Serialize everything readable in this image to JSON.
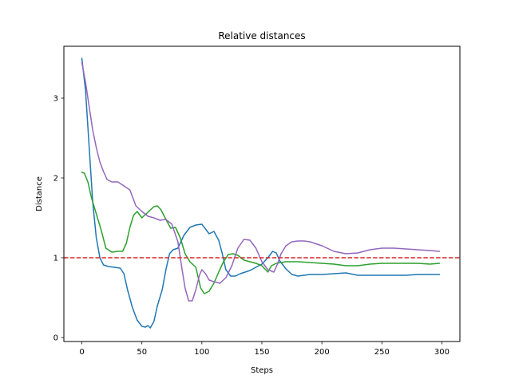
{
  "chart_data": {
    "type": "line",
    "title": "Relative distances",
    "xlabel": "Steps",
    "ylabel": "Distance",
    "xlim": [
      -15,
      315
    ],
    "ylim": [
      -0.05,
      3.65
    ],
    "xticks": [
      0,
      50,
      100,
      150,
      200,
      250,
      300
    ],
    "yticks": [
      0,
      1,
      2,
      3
    ],
    "grid": false,
    "reference_line": {
      "y": 1.0,
      "color": "#d62728",
      "style": "dashed"
    },
    "series": [
      {
        "color": "#1f77b4",
        "x": [
          0,
          3,
          6,
          9,
          12,
          15,
          18,
          22,
          27,
          32,
          35,
          38,
          42,
          46,
          50,
          53,
          55,
          57,
          60,
          63,
          67,
          70,
          73,
          76,
          80,
          85,
          90,
          95,
          100,
          103,
          106,
          110,
          114,
          117,
          120,
          124,
          128,
          132,
          136,
          140,
          145,
          150,
          155,
          159,
          162,
          165,
          170,
          175,
          180,
          185,
          190,
          200,
          210,
          220,
          230,
          240,
          250,
          260,
          270,
          280,
          290,
          298
        ],
        "y": [
          3.5,
          3.1,
          2.4,
          1.7,
          1.25,
          1.0,
          0.91,
          0.89,
          0.88,
          0.87,
          0.8,
          0.6,
          0.38,
          0.22,
          0.14,
          0.13,
          0.15,
          0.12,
          0.2,
          0.4,
          0.6,
          0.85,
          1.05,
          1.1,
          1.12,
          1.28,
          1.38,
          1.41,
          1.42,
          1.36,
          1.3,
          1.33,
          1.22,
          1.05,
          0.85,
          0.77,
          0.77,
          0.8,
          0.82,
          0.84,
          0.88,
          0.92,
          1.0,
          1.08,
          1.06,
          0.96,
          0.86,
          0.79,
          0.77,
          0.78,
          0.79,
          0.79,
          0.8,
          0.81,
          0.78,
          0.78,
          0.78,
          0.78,
          0.78,
          0.79,
          0.79,
          0.79
        ]
      },
      {
        "color": "#2ca02c",
        "x": [
          0,
          2,
          5,
          8,
          12,
          16,
          20,
          25,
          30,
          34,
          37,
          40,
          43,
          46,
          50,
          55,
          60,
          63,
          66,
          70,
          74,
          78,
          82,
          86,
          90,
          95,
          99,
          102,
          106,
          110,
          114,
          118,
          122,
          126,
          130,
          135,
          140,
          145,
          150,
          155,
          158,
          162,
          170,
          180,
          190,
          200,
          210,
          220,
          230,
          240,
          250,
          260,
          270,
          280,
          290,
          298
        ],
        "y": [
          2.07,
          2.06,
          1.95,
          1.75,
          1.55,
          1.35,
          1.12,
          1.07,
          1.08,
          1.08,
          1.18,
          1.38,
          1.53,
          1.58,
          1.5,
          1.57,
          1.64,
          1.65,
          1.6,
          1.48,
          1.37,
          1.38,
          1.25,
          1.05,
          0.95,
          0.88,
          0.62,
          0.55,
          0.58,
          0.68,
          0.82,
          0.95,
          1.04,
          1.05,
          1.03,
          0.97,
          0.95,
          0.93,
          0.9,
          0.82,
          0.9,
          0.93,
          0.95,
          0.95,
          0.94,
          0.93,
          0.92,
          0.9,
          0.9,
          0.92,
          0.93,
          0.93,
          0.93,
          0.93,
          0.92,
          0.93
        ]
      },
      {
        "color": "#9467bd",
        "x": [
          0,
          3,
          6,
          9,
          12,
          15,
          18,
          21,
          25,
          30,
          35,
          40,
          45,
          50,
          55,
          60,
          65,
          70,
          75,
          80,
          83,
          86,
          89,
          92,
          95,
          98,
          100,
          103,
          106,
          110,
          115,
          120,
          125,
          130,
          135,
          140,
          145,
          150,
          155,
          160,
          163,
          166,
          170,
          175,
          180,
          185,
          190,
          200,
          210,
          220,
          230,
          240,
          250,
          260,
          270,
          280,
          290,
          298
        ],
        "y": [
          3.45,
          3.2,
          2.9,
          2.6,
          2.38,
          2.2,
          2.08,
          1.98,
          1.95,
          1.95,
          1.9,
          1.85,
          1.65,
          1.58,
          1.52,
          1.5,
          1.47,
          1.48,
          1.42,
          1.2,
          0.9,
          0.62,
          0.46,
          0.46,
          0.6,
          0.78,
          0.85,
          0.8,
          0.72,
          0.7,
          0.68,
          0.75,
          0.9,
          1.12,
          1.23,
          1.22,
          1.12,
          0.95,
          0.85,
          0.82,
          0.92,
          1.05,
          1.15,
          1.2,
          1.21,
          1.21,
          1.2,
          1.15,
          1.08,
          1.05,
          1.06,
          1.1,
          1.12,
          1.12,
          1.11,
          1.1,
          1.09,
          1.08
        ]
      }
    ]
  }
}
